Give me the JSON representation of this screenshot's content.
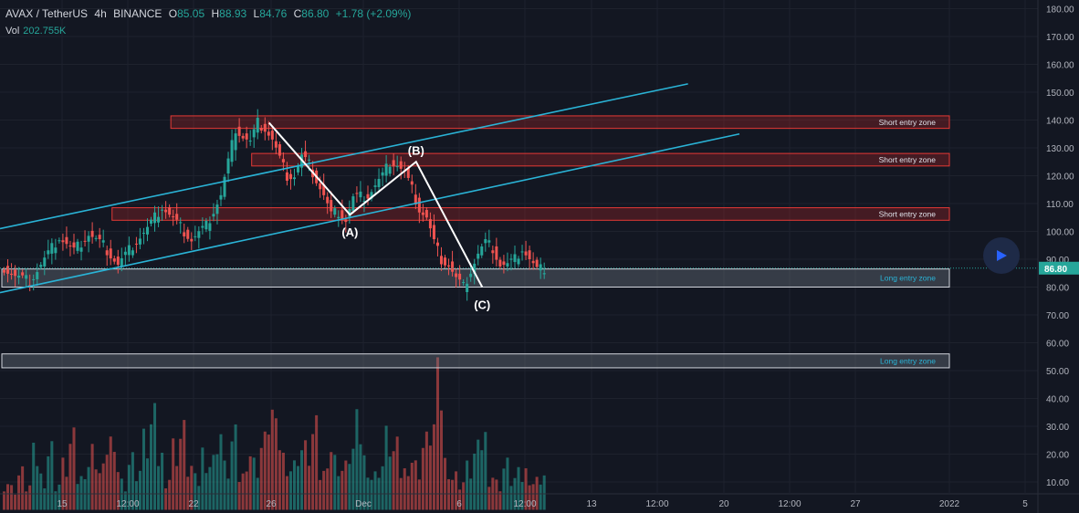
{
  "header": {
    "pair": "AVAX / TetherUS",
    "timeframe": "4h",
    "exchange": "BINANCE",
    "open_label": "O",
    "open": "85.05",
    "high_label": "H",
    "high": "88.93",
    "low_label": "L",
    "low": "84.76",
    "close_label": "C",
    "close": "86.80",
    "change": "+1.78 (+2.09%)",
    "volume_label": "Vol",
    "volume": "202.755K"
  },
  "colors": {
    "background": "#131722",
    "up": "#26a69a",
    "down": "#ef5350",
    "channel": "#2ab3d6",
    "short_zone": "#c62828",
    "long_zone": "#cfd4dc",
    "text": "#b2b5be"
  },
  "play_button": {
    "icon": "play-icon"
  },
  "chart_data": {
    "type": "candlestick",
    "price_axis": {
      "ylim": [
        0,
        180
      ],
      "ticks": [
        "180.00",
        "170.00",
        "160.00",
        "150.00",
        "140.00",
        "130.00",
        "120.00",
        "110.00",
        "100.00",
        "90.00",
        "80.00",
        "70.00",
        "60.00",
        "50.00",
        "40.00",
        "30.00",
        "20.00",
        "10.00"
      ],
      "current_price": 86.8,
      "current_price_label": "86.80"
    },
    "time_axis": {
      "ticks": [
        "15",
        "12:00",
        "22",
        "26",
        "Dec",
        "6",
        "12:00",
        "13",
        "12:00",
        "20",
        "12:00",
        "27",
        "2022",
        "5"
      ]
    },
    "price_path": [
      [
        0,
        88
      ],
      [
        2,
        84
      ],
      [
        4,
        82
      ],
      [
        6,
        90
      ],
      [
        8,
        98
      ],
      [
        10,
        93
      ],
      [
        12,
        99
      ],
      [
        14,
        95
      ],
      [
        16,
        88
      ],
      [
        18,
        95
      ],
      [
        20,
        101
      ],
      [
        22,
        109
      ],
      [
        24,
        103
      ],
      [
        26,
        97
      ],
      [
        28,
        102
      ],
      [
        30,
        113
      ],
      [
        31,
        125
      ],
      [
        32,
        137
      ],
      [
        33,
        134
      ],
      [
        34,
        132
      ],
      [
        35,
        139
      ],
      [
        36,
        137
      ],
      [
        37,
        133
      ],
      [
        38,
        126
      ],
      [
        39,
        120
      ],
      [
        40,
        120
      ],
      [
        41,
        127
      ],
      [
        42,
        124
      ],
      [
        44,
        113
      ],
      [
        45,
        106
      ],
      [
        46,
        107
      ],
      [
        47,
        104
      ],
      [
        48,
        112
      ],
      [
        50,
        113
      ],
      [
        52,
        120
      ],
      [
        53,
        125
      ],
      [
        54,
        124
      ],
      [
        55,
        121
      ],
      [
        56,
        115
      ],
      [
        57,
        108
      ],
      [
        58,
        105
      ],
      [
        59,
        96
      ],
      [
        60,
        90
      ],
      [
        61,
        88
      ],
      [
        62,
        83
      ],
      [
        63,
        80
      ],
      [
        64,
        86
      ],
      [
        65,
        92
      ],
      [
        66,
        96
      ],
      [
        67,
        94
      ],
      [
        68,
        88
      ],
      [
        69,
        88
      ],
      [
        70,
        90
      ],
      [
        71,
        94
      ],
      [
        72,
        90
      ],
      [
        73,
        86
      ],
      [
        74,
        86.8
      ]
    ],
    "volume": [
      12,
      9,
      15,
      10,
      22,
      14,
      25,
      11,
      18,
      27,
      13,
      20,
      24,
      16,
      30,
      19,
      12,
      21,
      17,
      28,
      35,
      22,
      14,
      26,
      31,
      18,
      12,
      24,
      20,
      33,
      17,
      28,
      14,
      25,
      19,
      27,
      41,
      30,
      22,
      18,
      26,
      24,
      31,
      15,
      27,
      20,
      17,
      25,
      33,
      21,
      14,
      19,
      29,
      24,
      16,
      22,
      18,
      27,
      35,
      50,
      20,
      14,
      12,
      17,
      23,
      30,
      15,
      11,
      18,
      13,
      14,
      16,
      12,
      15,
      9
    ],
    "wave_points": [
      {
        "label": "",
        "index": 36,
        "price": 139
      },
      {
        "label": "(A)",
        "index": 47,
        "price": 106
      },
      {
        "label": "(B)",
        "index": 56,
        "price": 125
      },
      {
        "label": "(C)",
        "index": 65,
        "price": 80
      }
    ],
    "channel_lines": [
      {
        "from": [
          0,
          101
        ],
        "to": [
          93,
          153
        ]
      },
      {
        "from": [
          0,
          78
        ],
        "to": [
          100,
          135
        ]
      }
    ],
    "zones": [
      {
        "type": "short",
        "label": "Short entry zone",
        "low": 137,
        "high": 141.5,
        "start_index": 23
      },
      {
        "type": "short",
        "label": "Short entry zone",
        "low": 123.5,
        "high": 128,
        "start_index": 34
      },
      {
        "type": "short",
        "label": "Short entry zone",
        "low": 104,
        "high": 108.5,
        "start_index": 15
      },
      {
        "type": "long",
        "label": "Long entry zone",
        "low": 80,
        "high": 86.5,
        "start_index": 0
      },
      {
        "type": "long",
        "label": "Long entry zone",
        "low": 51,
        "high": 56,
        "start_index": 0
      }
    ]
  }
}
